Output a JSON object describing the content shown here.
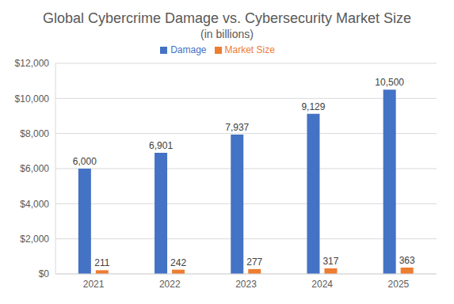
{
  "chart_data": {
    "type": "bar",
    "title": "Global Cybercrime Damage vs. Cybersecurity Market Size",
    "subtitle": "(in billions)",
    "categories": [
      "2021",
      "2022",
      "2023",
      "2024",
      "2025"
    ],
    "series": [
      {
        "name": "Damage",
        "color": "#4472c4",
        "values": [
          6000,
          6901,
          7937,
          9129,
          10500
        ],
        "value_labels": [
          "6,000",
          "6,901",
          "7,937",
          "9,129",
          "10,500"
        ]
      },
      {
        "name": "Market Size",
        "color": "#ed7d31",
        "values": [
          211,
          242,
          277,
          317,
          363
        ]
      }
    ],
    "ylim": [
      0,
      12000
    ],
    "yticks": [
      {
        "value": 0,
        "label": "$0"
      },
      {
        "value": 2000,
        "label": "$2,000"
      },
      {
        "value": 4000,
        "label": "$4,000"
      },
      {
        "value": 6000,
        "label": "$6,000"
      },
      {
        "value": 8000,
        "label": "$8,000"
      },
      {
        "value": 10000,
        "label": "$10,000"
      },
      {
        "value": 12000,
        "label": "$12,000"
      }
    ],
    "grid": true,
    "legend": "top",
    "data_labels": true
  }
}
